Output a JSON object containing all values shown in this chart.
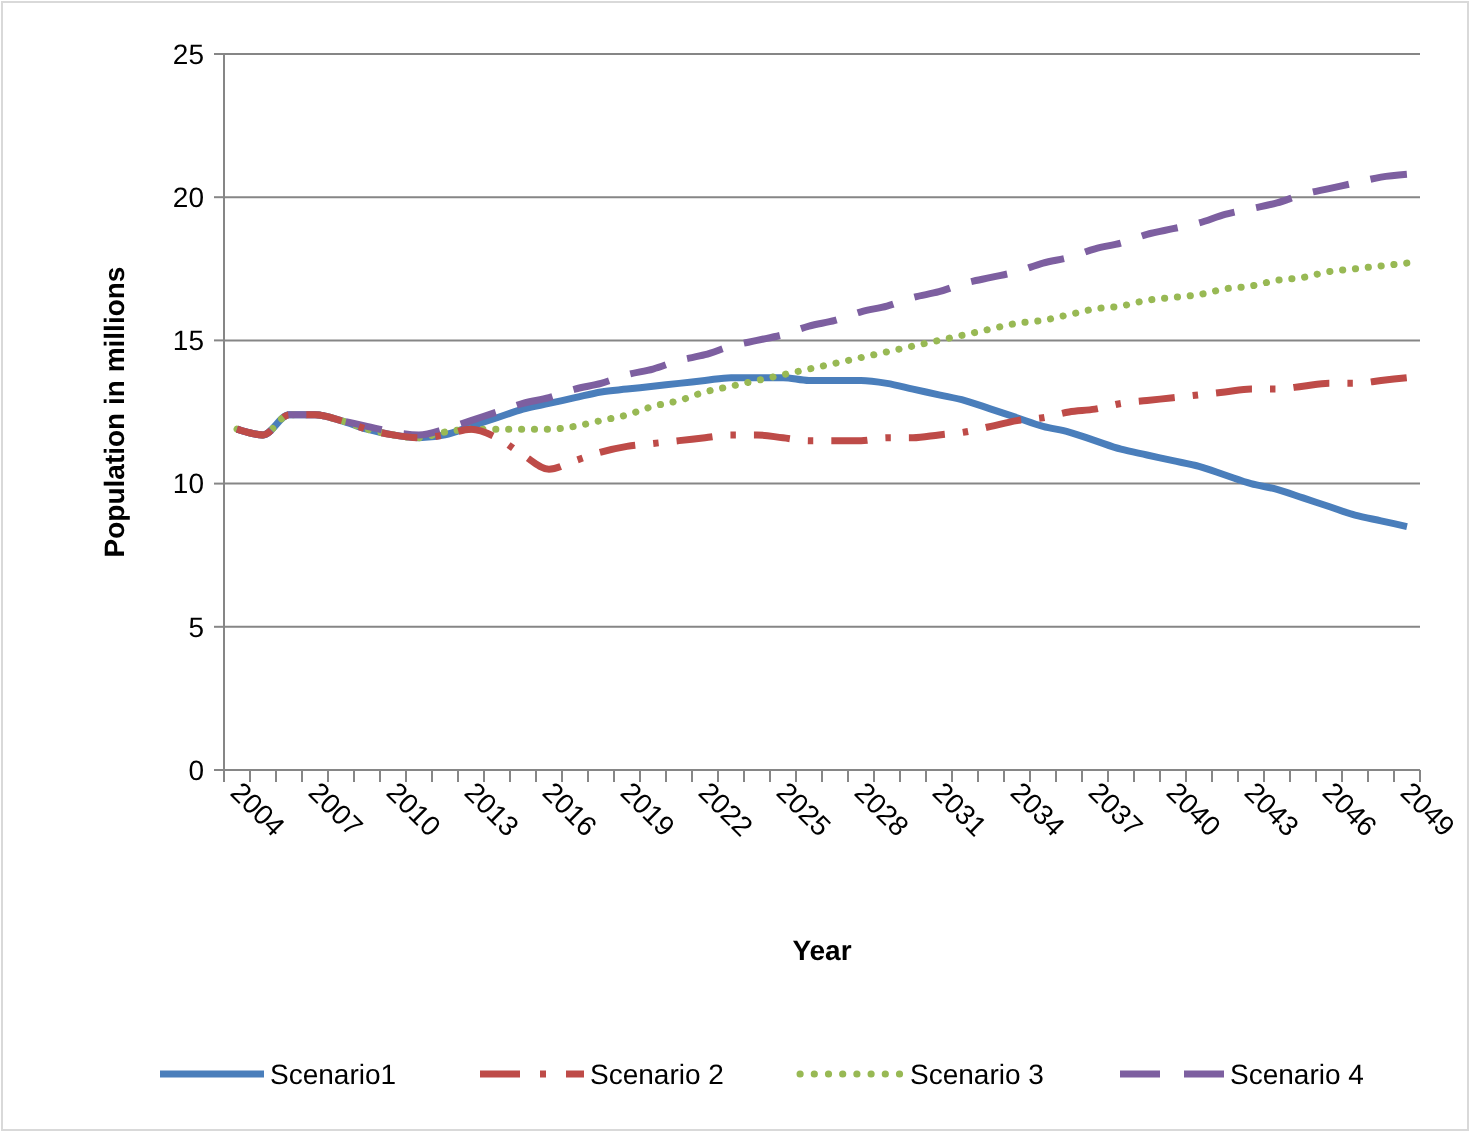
{
  "chart_data": {
    "type": "line",
    "xlabel": "Year",
    "ylabel": "Population in millions",
    "categories": [
      "2004",
      null,
      null,
      "2007",
      null,
      null,
      "2010",
      null,
      null,
      "2013",
      null,
      null,
      "2016",
      null,
      null,
      "2019",
      null,
      null,
      "2022",
      null,
      null,
      "2025",
      null,
      null,
      "2028",
      null,
      null,
      "2031",
      null,
      null,
      "2034",
      null,
      null,
      "2037",
      null,
      null,
      "2040",
      null,
      null,
      "2043",
      null,
      null,
      "2046",
      null,
      null,
      "2049"
    ],
    "series": [
      {
        "name": "Scenario1",
        "color": "#4a7ebb",
        "line_style": "solid",
        "values": [
          11.9,
          11.7,
          12.4,
          12.4,
          12.2,
          11.9,
          11.7,
          11.6,
          11.7,
          12.0,
          12.3,
          12.6,
          12.8,
          13.0,
          13.2,
          13.3,
          13.4,
          13.5,
          13.6,
          13.7,
          13.7,
          13.7,
          13.6,
          13.6,
          13.6,
          13.5,
          13.3,
          13.1,
          12.9,
          12.6,
          12.3,
          12.0,
          11.8,
          11.5,
          11.2,
          11.0,
          10.8,
          10.6,
          10.3,
          10.0,
          9.8,
          9.5,
          9.2,
          8.9,
          8.7,
          8.5
        ]
      },
      {
        "name": "Scenario 2",
        "color": "#be4b48",
        "line_style": "dashdot",
        "values": [
          11.9,
          11.7,
          12.4,
          12.4,
          12.2,
          11.9,
          11.7,
          11.6,
          11.7,
          11.9,
          11.6,
          11.0,
          10.5,
          10.8,
          11.1,
          11.3,
          11.4,
          11.5,
          11.6,
          11.7,
          11.7,
          11.6,
          11.5,
          11.5,
          11.5,
          11.6,
          11.6,
          11.7,
          11.8,
          12.0,
          12.2,
          12.3,
          12.5,
          12.6,
          12.8,
          12.9,
          13.0,
          13.1,
          13.2,
          13.3,
          13.3,
          13.4,
          13.5,
          13.5,
          13.6,
          13.7
        ]
      },
      {
        "name": "Scenario 3",
        "color": "#98b954",
        "line_style": "dotted",
        "values": [
          11.9,
          11.7,
          12.4,
          12.4,
          12.2,
          11.9,
          11.7,
          11.6,
          11.8,
          11.9,
          11.9,
          11.9,
          11.9,
          12.0,
          12.2,
          12.4,
          12.7,
          12.9,
          13.2,
          13.4,
          13.6,
          13.8,
          14.0,
          14.2,
          14.4,
          14.6,
          14.8,
          15.0,
          15.2,
          15.4,
          15.6,
          15.7,
          15.9,
          16.1,
          16.2,
          16.4,
          16.5,
          16.6,
          16.8,
          16.9,
          17.1,
          17.2,
          17.4,
          17.5,
          17.6,
          17.7
        ]
      },
      {
        "name": "Scenario 4",
        "color": "#7d5fa0",
        "line_style": "dashed",
        "values": [
          11.9,
          11.7,
          12.4,
          12.4,
          12.2,
          12.0,
          11.8,
          11.7,
          11.9,
          12.2,
          12.5,
          12.8,
          13.0,
          13.3,
          13.5,
          13.8,
          14.0,
          14.3,
          14.5,
          14.8,
          15.0,
          15.2,
          15.5,
          15.7,
          16.0,
          16.2,
          16.5,
          16.7,
          17.0,
          17.2,
          17.4,
          17.7,
          17.9,
          18.2,
          18.4,
          18.7,
          18.9,
          19.1,
          19.4,
          19.6,
          19.8,
          20.1,
          20.3,
          20.5,
          20.7,
          20.8
        ]
      }
    ],
    "ylim": [
      0,
      25
    ],
    "yticks": [
      0,
      5,
      10,
      15,
      20,
      25
    ],
    "grid": "y",
    "legend": "bottom"
  }
}
